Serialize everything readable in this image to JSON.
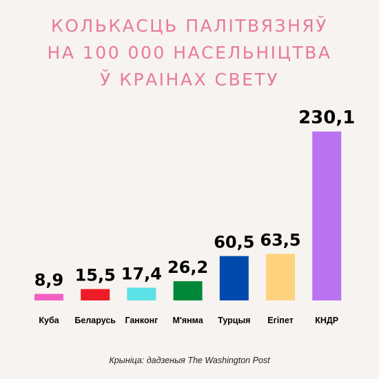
{
  "title_lines": [
    "КОЛЬКАСЦЬ ПАЛІТВЯЗНЯЎ",
    "НА 100 000 НАСЕЛЬНІЦТВА",
    "Ў КРАІНАХ СВЕТУ"
  ],
  "source": "Крыніца: дадзеныя The Washington Post",
  "chart_data": {
    "type": "bar",
    "title": "КОЛЬКАСЦЬ ПАЛІТВЯЗНЯЎ НА 100 000 НАСЕЛЬНІЦТВА Ў КРАІНАХ СВЕТУ",
    "categories": [
      "Куба",
      "Беларусь",
      "Ганконг",
      "М'янма",
      "Турцыя",
      "Егіпет",
      "КНДР"
    ],
    "values": [
      8.9,
      15.5,
      17.4,
      26.2,
      60.5,
      63.5,
      230.1
    ],
    "value_labels": [
      "8,9",
      "15,5",
      "17,4",
      "26,2",
      "60,5",
      "63,5",
      "230,1"
    ],
    "colors": [
      "#f25fc3",
      "#ed1c24",
      "#5ce1e6",
      "#00883a",
      "#004aad",
      "#ffd27d",
      "#b973f2"
    ],
    "grid": false,
    "legend": "none"
  }
}
